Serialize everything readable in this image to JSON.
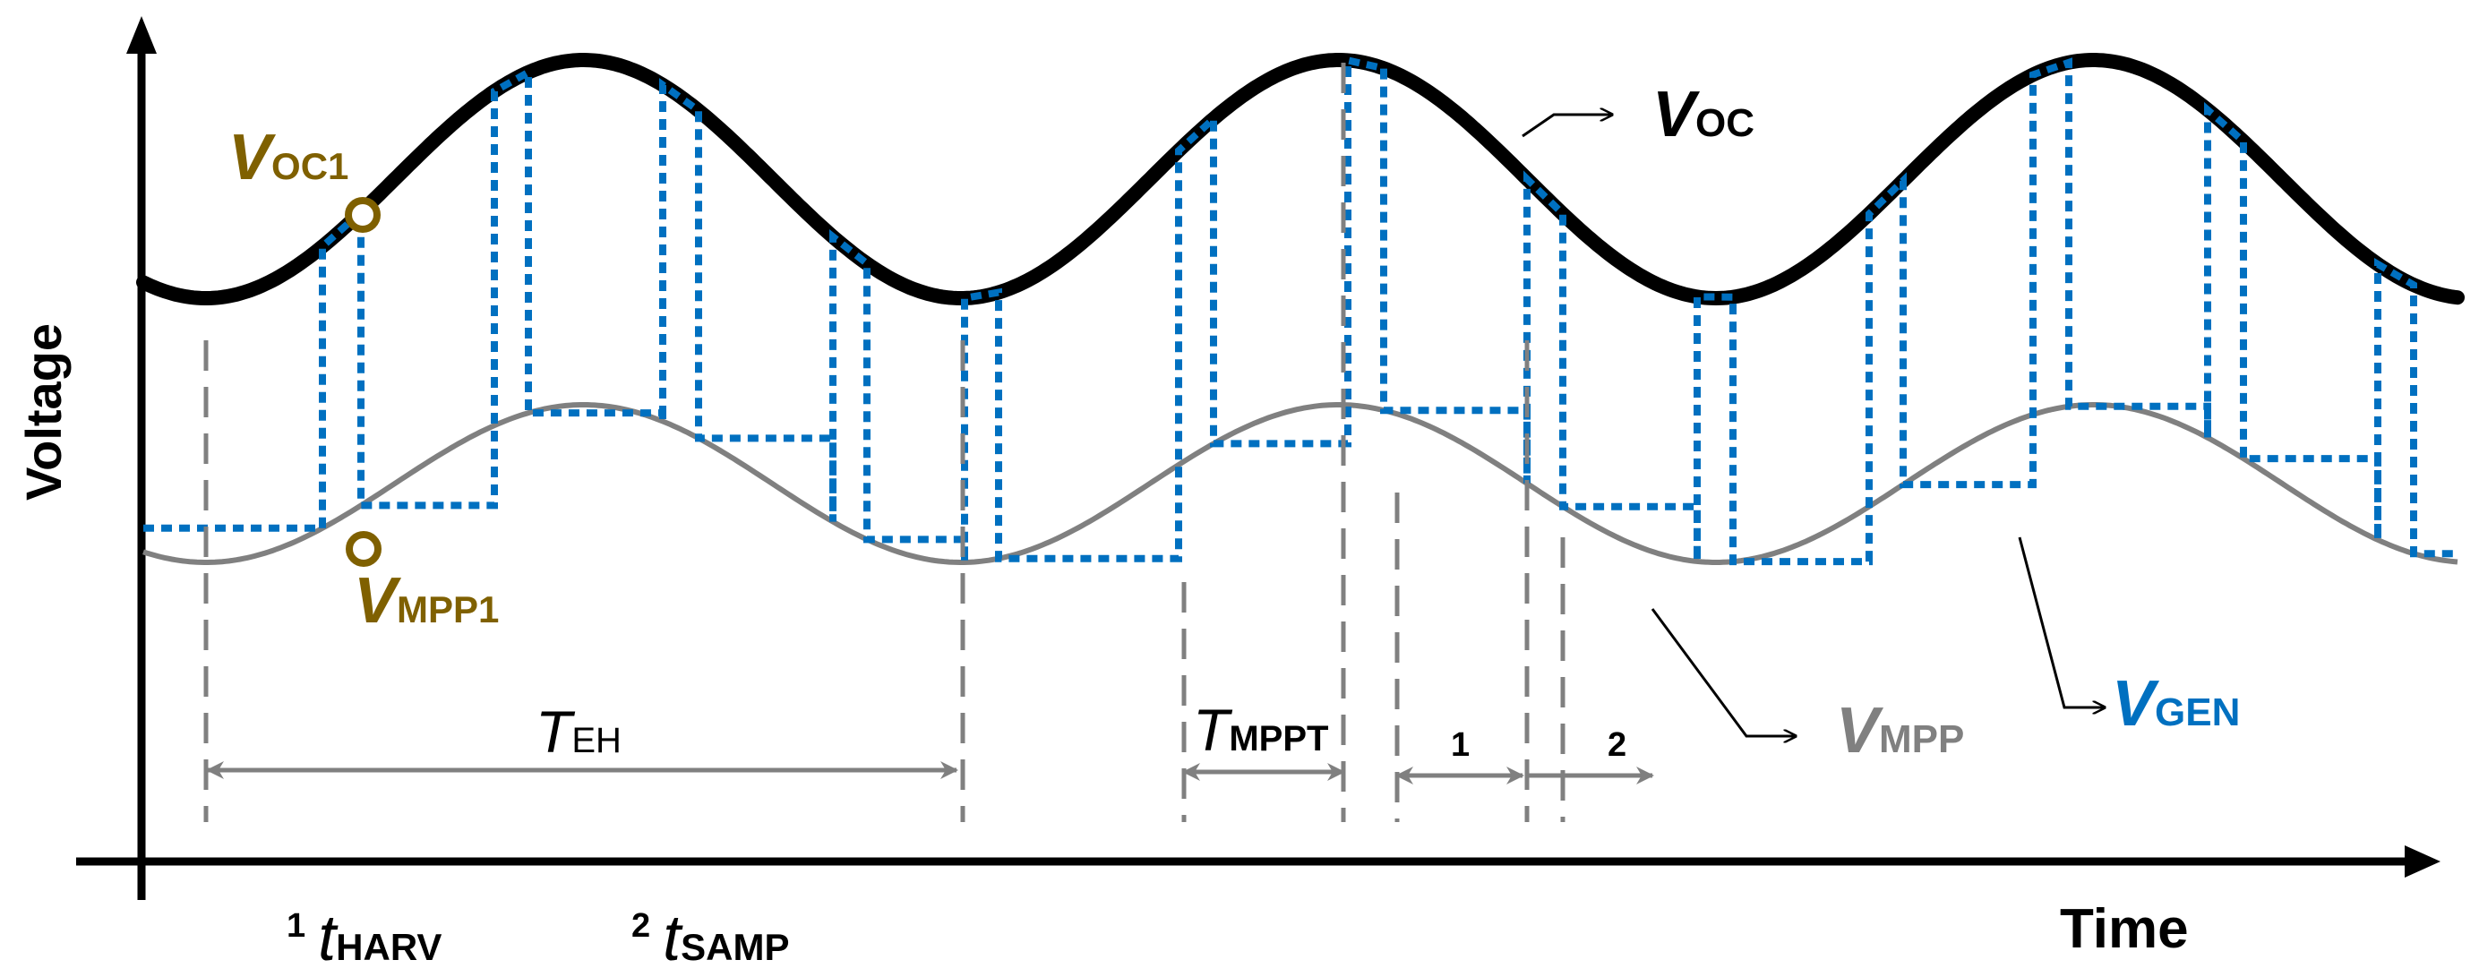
{
  "axes": {
    "y_label": "Voltage",
    "x_label": "Time"
  },
  "colors": {
    "voc": "#000000",
    "vmpp": "#808080",
    "vgen": "#0070C0",
    "marker": "#7F6000",
    "guide": "#808080"
  },
  "labels": {
    "voc_main": "V",
    "voc_sub": "OC",
    "vmpp_main": "V",
    "vmpp_sub": "MPP",
    "vgen_main": "V",
    "vgen_sub": "GEN",
    "voc1_main": "V",
    "voc1_sub": "OC1",
    "vmpp1_main": "V",
    "vmpp1_sub": "MPP1",
    "teh_main": "T",
    "teh_sub": "EH",
    "tmppt_main": "T",
    "tmppt_sub": "MPPT",
    "interval_1": "1",
    "interval_2": "2"
  },
  "legend": {
    "footnote_1_num": "1",
    "footnote_1_main": "t",
    "footnote_1_sub": "HARV",
    "footnote_2_num": "2",
    "footnote_2_main": "t",
    "footnote_2_sub": "SAMP"
  }
}
